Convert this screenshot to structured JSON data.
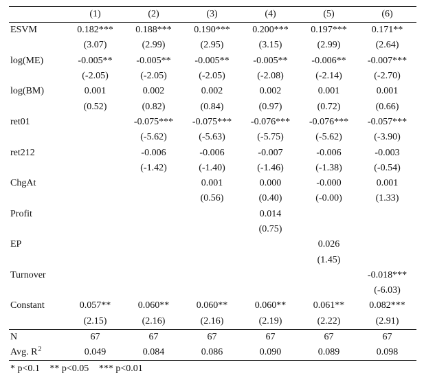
{
  "table": {
    "columns": [
      "(1)",
      "(2)",
      "(3)",
      "(4)",
      "(5)",
      "(6)"
    ],
    "rows": [
      {
        "label": "ESVM",
        "coef": [
          "0.182***",
          "0.188***",
          "0.190***",
          "0.200***",
          "0.197***",
          "0.171**"
        ],
        "se": [
          "(3.07)",
          "(2.99)",
          "(2.95)",
          "(3.15)",
          "(2.99)",
          "(2.64)"
        ]
      },
      {
        "label": "log(ME)",
        "coef": [
          "-0.005**",
          "-0.005**",
          "-0.005**",
          "-0.005**",
          "-0.006**",
          "-0.007***"
        ],
        "se": [
          "(-2.05)",
          "(-2.05)",
          "(-2.05)",
          "(-2.08)",
          "(-2.14)",
          "(-2.70)"
        ]
      },
      {
        "label": "log(BM)",
        "coef": [
          "0.001",
          "0.002",
          "0.002",
          "0.002",
          "0.001",
          "0.001"
        ],
        "se": [
          "(0.52)",
          "(0.82)",
          "(0.84)",
          "(0.97)",
          "(0.72)",
          "(0.66)"
        ]
      },
      {
        "label": "ret01",
        "coef": [
          "",
          "-0.075***",
          "-0.075***",
          "-0.076***",
          "-0.076***",
          "-0.057***"
        ],
        "se": [
          "",
          "(-5.62)",
          "(-5.63)",
          "(-5.75)",
          "(-5.62)",
          "(-3.90)"
        ]
      },
      {
        "label": "ret212",
        "coef": [
          "",
          "-0.006",
          "-0.006",
          "-0.007",
          "-0.006",
          "-0.003"
        ],
        "se": [
          "",
          "(-1.42)",
          "(-1.40)",
          "(-1.46)",
          "(-1.38)",
          "(-0.54)"
        ]
      },
      {
        "label": "ChgAt",
        "coef": [
          "",
          "",
          "0.001",
          "0.000",
          "-0.000",
          "0.001"
        ],
        "se": [
          "",
          "",
          "(0.56)",
          "(0.40)",
          "(-0.00)",
          "(1.33)"
        ]
      },
      {
        "label": "Profit",
        "coef": [
          "",
          "",
          "",
          "0.014",
          "",
          ""
        ],
        "se": [
          "",
          "",
          "",
          "(0.75)",
          "",
          ""
        ]
      },
      {
        "label": "EP",
        "coef": [
          "",
          "",
          "",
          "",
          "0.026",
          ""
        ],
        "se": [
          "",
          "",
          "",
          "",
          "(1.45)",
          ""
        ]
      },
      {
        "label": "Turnover",
        "coef": [
          "",
          "",
          "",
          "",
          "",
          "-0.018***"
        ],
        "se": [
          "",
          "",
          "",
          "",
          "",
          "(-6.03)"
        ]
      },
      {
        "label": "Constant",
        "coef": [
          "0.057**",
          "0.060**",
          "0.060**",
          "0.060**",
          "0.061**",
          "0.082***"
        ],
        "se": [
          "(2.15)",
          "(2.16)",
          "(2.16)",
          "(2.19)",
          "(2.22)",
          "(2.91)"
        ]
      }
    ],
    "stats": [
      {
        "label": "N",
        "sup": "",
        "values": [
          "67",
          "67",
          "67",
          "67",
          "67",
          "67"
        ]
      },
      {
        "label": "Avg. R",
        "sup": "2",
        "values": [
          "0.049",
          "0.084",
          "0.086",
          "0.090",
          "0.089",
          "0.098"
        ]
      }
    ]
  },
  "footnote": [
    "* p<0.1",
    "** p<0.05",
    "*** p<0.01"
  ]
}
